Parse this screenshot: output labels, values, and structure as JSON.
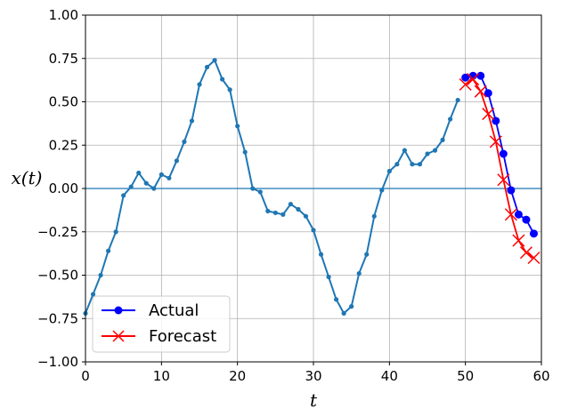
{
  "chart_data": {
    "type": "line",
    "xlabel": "t",
    "ylabel": "x(t)",
    "xlim": [
      0,
      60
    ],
    "ylim": [
      -1.0,
      1.0
    ],
    "xticks": [
      "0",
      "10",
      "20",
      "30",
      "40",
      "50",
      "60"
    ],
    "yticks": [
      "1.00",
      "0.75",
      "0.50",
      "0.25",
      "0.00",
      "−0.25",
      "−0.50",
      "−0.75",
      "−1.00"
    ],
    "grid": true,
    "legend_position": "lower-left",
    "reference_line_y": 0.0,
    "series": [
      {
        "color": "#1f77b4",
        "marker": "dot",
        "x": [
          0,
          1,
          2,
          3,
          4,
          5,
          6,
          7,
          8,
          9,
          10,
          11,
          12,
          13,
          14,
          15,
          16,
          17,
          18,
          19,
          20,
          21,
          22,
          23,
          24,
          25,
          26,
          27,
          28,
          29,
          30,
          31,
          32,
          33,
          34,
          35,
          36,
          37,
          38,
          39,
          40,
          41,
          42,
          43,
          44,
          45,
          46,
          47,
          48,
          49
        ],
        "y": [
          -0.72,
          -0.61,
          -0.5,
          -0.36,
          -0.25,
          -0.04,
          0.01,
          0.09,
          0.03,
          0.0,
          0.08,
          0.06,
          0.16,
          0.27,
          0.39,
          0.6,
          0.7,
          0.74,
          0.63,
          0.57,
          0.36,
          0.21,
          0.0,
          -0.02,
          -0.13,
          -0.14,
          -0.15,
          -0.09,
          -0.12,
          -0.16,
          -0.24,
          -0.38,
          -0.51,
          -0.64,
          -0.72,
          -0.68,
          -0.49,
          -0.38,
          -0.16,
          -0.01,
          0.1,
          0.14,
          0.22,
          0.14,
          0.14,
          0.2,
          0.22,
          0.28,
          0.4,
          0.51
        ]
      },
      {
        "name": "Actual",
        "color": "#0000ff",
        "marker": "circle",
        "x": [
          50,
          51,
          52,
          53,
          54,
          55,
          56,
          57,
          58,
          59
        ],
        "y": [
          0.64,
          0.65,
          0.65,
          0.55,
          0.39,
          0.2,
          -0.01,
          -0.15,
          -0.18,
          -0.26
        ]
      },
      {
        "name": "Forecast",
        "color": "#ff0000",
        "marker": "x",
        "x": [
          50,
          51,
          52,
          53,
          54,
          55,
          56,
          57,
          58,
          59
        ],
        "y": [
          0.6,
          0.63,
          0.56,
          0.43,
          0.27,
          0.05,
          -0.15,
          -0.3,
          -0.37,
          -0.4
        ]
      }
    ]
  }
}
